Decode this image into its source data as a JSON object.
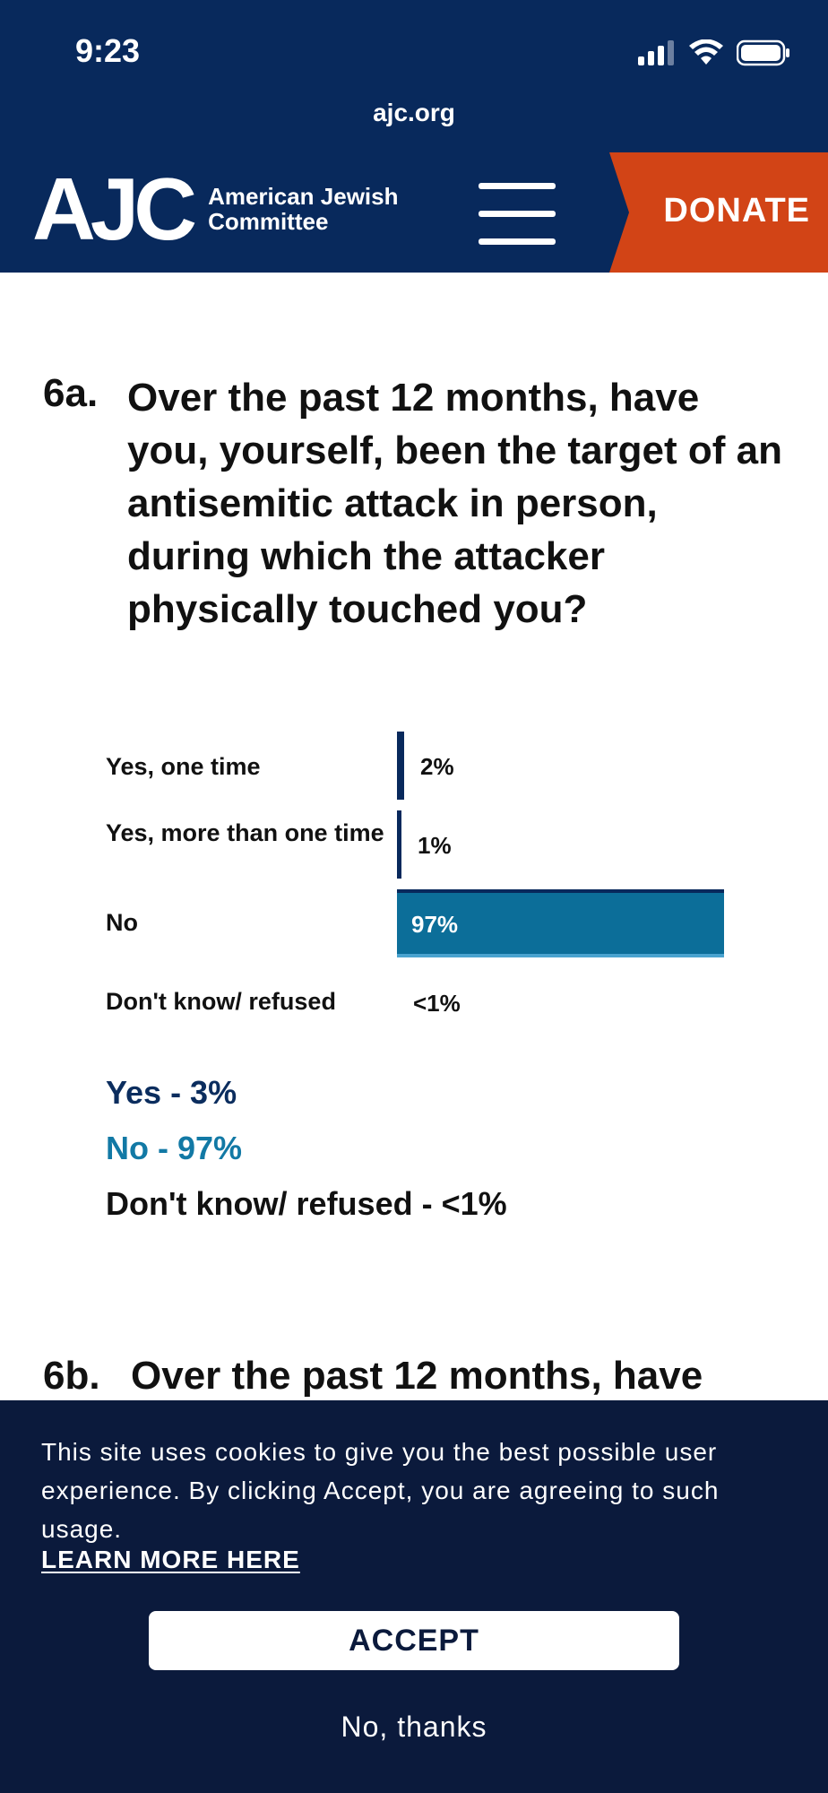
{
  "status_bar": {
    "time": "9:23",
    "icons": [
      "signal-icon",
      "wifi-icon",
      "battery-icon"
    ]
  },
  "browser": {
    "url": "ajc.org"
  },
  "header": {
    "logo_mark": "AJC",
    "logo_text_line1": "American Jewish",
    "logo_text_line2": "Committee",
    "menu_icon": "hamburger-menu-icon",
    "donate_label": "DONATE"
  },
  "colors": {
    "navy": "#08295c",
    "donate_orange": "#d24416",
    "bar_teal": "#0c6e99",
    "yes_navy": "#0b2d5e",
    "no_teal": "#1279a5",
    "cookie_bg": "#0b1a3c"
  },
  "question": {
    "number": "6a.",
    "text": "Over the past 12 months, have you, yourself, been the target of an antisemitic attack in person, during which the attacker physically touched you?"
  },
  "chart_data": {
    "type": "bar",
    "orientation": "horizontal",
    "categories": [
      "Yes, one time",
      "Yes, more than one time",
      "No",
      "Don't know/ refused"
    ],
    "values": [
      2,
      1,
      97,
      0.4
    ],
    "labels": [
      "2%",
      "1%",
      "97%",
      "<1%"
    ],
    "xlim": [
      0,
      100
    ],
    "grid": false
  },
  "summary": {
    "yes": "Yes - 3%",
    "no": "No - 97%",
    "dk": "Don't know/ refused - <1%"
  },
  "next_question": {
    "number": "6b.",
    "text": "Over the past 12 months, have"
  },
  "cookie_banner": {
    "text": "This site uses cookies to give you the best possible user experience.  By clicking Accept, you are agreeing to such usage.",
    "learn_more": "LEARN MORE HERE",
    "accept_label": "ACCEPT",
    "decline_label": "No, thanks"
  }
}
